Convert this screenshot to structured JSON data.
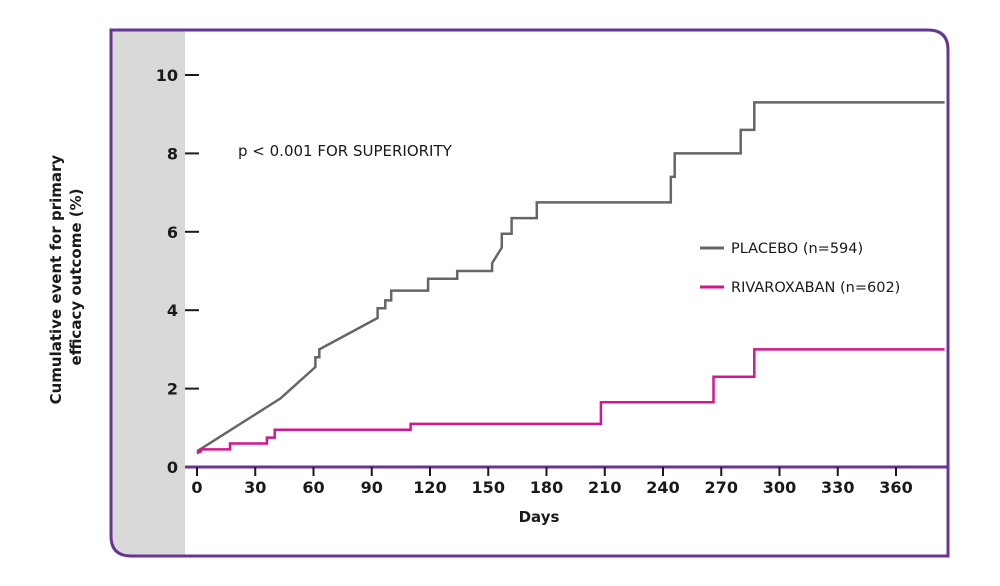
{
  "chart_data": {
    "type": "line",
    "step": true,
    "xlabel": "Days",
    "ylabel_lines": [
      "Cumulative event for primary",
      "efficacy outcome (%)"
    ],
    "xlim": [
      0,
      385
    ],
    "ylim": [
      0,
      10
    ],
    "xticks": [
      0,
      30,
      60,
      90,
      120,
      150,
      180,
      210,
      240,
      270,
      300,
      330,
      360
    ],
    "yticks": [
      0,
      2,
      4,
      6,
      8,
      10
    ],
    "annotation": "p < 0.001 FOR SUPERIORITY",
    "legend_position": "right",
    "grid": false,
    "colors": {
      "frame": "#6a3591",
      "shade": "#d9d9d9",
      "axis": "#6a3591",
      "tick": "#1a1a1a"
    },
    "series": [
      {
        "name": "PLACEBO (n=594)",
        "color": "#666666",
        "points": [
          [
            0,
            0.4
          ],
          [
            43,
            1.75
          ],
          [
            61,
            2.55
          ],
          [
            61,
            2.8
          ],
          [
            63,
            2.8
          ],
          [
            63,
            3.0
          ],
          [
            93,
            3.8
          ],
          [
            93,
            4.05
          ],
          [
            97,
            4.05
          ],
          [
            97,
            4.25
          ],
          [
            100,
            4.25
          ],
          [
            100,
            4.5
          ],
          [
            119,
            4.5
          ],
          [
            119,
            4.8
          ],
          [
            134,
            4.8
          ],
          [
            134,
            5.0
          ],
          [
            152,
            5.0
          ],
          [
            152,
            5.2
          ],
          [
            157,
            5.6
          ],
          [
            157,
            5.95
          ],
          [
            162,
            5.95
          ],
          [
            162,
            6.35
          ],
          [
            175,
            6.35
          ],
          [
            175,
            6.75
          ],
          [
            244,
            6.75
          ],
          [
            244,
            7.4
          ],
          [
            246,
            7.4
          ],
          [
            246,
            8.0
          ],
          [
            280,
            8.0
          ],
          [
            280,
            8.6
          ],
          [
            287,
            8.6
          ],
          [
            287,
            9.3
          ],
          [
            385,
            9.3
          ]
        ]
      },
      {
        "name": "RIVAROXABAN (n=602)",
        "color": "#d4168d",
        "points": [
          [
            0,
            0.35
          ],
          [
            2,
            0.4
          ],
          [
            2,
            0.45
          ],
          [
            17,
            0.45
          ],
          [
            17,
            0.6
          ],
          [
            36,
            0.6
          ],
          [
            36,
            0.75
          ],
          [
            40,
            0.75
          ],
          [
            40,
            0.95
          ],
          [
            110,
            0.95
          ],
          [
            110,
            1.1
          ],
          [
            208,
            1.1
          ],
          [
            208,
            1.65
          ],
          [
            266,
            1.65
          ],
          [
            266,
            2.3
          ],
          [
            287,
            2.3
          ],
          [
            287,
            3.0
          ],
          [
            385,
            3.0
          ]
        ]
      }
    ]
  }
}
